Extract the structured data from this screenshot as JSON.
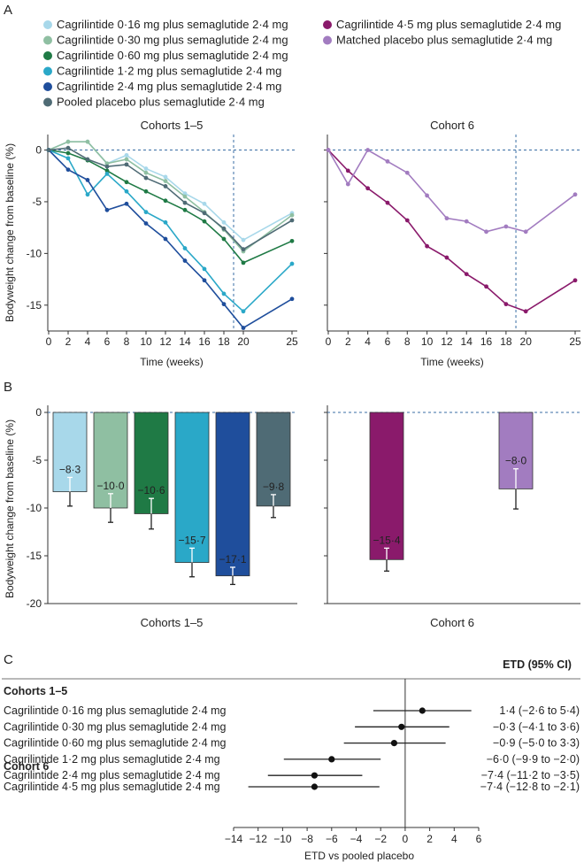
{
  "panel_letters": {
    "A": "A",
    "B": "B",
    "C": "C"
  },
  "colors": {
    "c016": "#a8d8ea",
    "c030": "#8fbfa2",
    "c060": "#1f7a45",
    "c12": "#2aa8c8",
    "c24": "#1f4e9c",
    "pooled": "#4f6b75",
    "c45": "#8a1a6b",
    "matched": "#a27cc0",
    "dash": "#3a6ea5"
  },
  "legend": [
    {
      "label": "Cagrilintide 0·16 mg plus semaglutide 2·4 mg",
      "color": "#a8d8ea"
    },
    {
      "label": "Cagrilintide 0·30 mg plus semaglutide 2·4 mg",
      "color": "#8fbfa2"
    },
    {
      "label": "Cagrilintide 0·60 mg plus semaglutide 2·4 mg",
      "color": "#1f7a45"
    },
    {
      "label": "Cagrilintide 1·2 mg plus semaglutide 2·4 mg",
      "color": "#2aa8c8"
    },
    {
      "label": "Cagrilintide 2·4 mg plus semaglutide 2·4 mg",
      "color": "#1f4e9c"
    },
    {
      "label": "Pooled placebo plus semaglutide 2·4 mg",
      "color": "#4f6b75"
    },
    {
      "label": "Cagrilintide 4·5 mg plus semaglutide 2·4 mg",
      "color": "#8a1a6b"
    },
    {
      "label": "Matched placebo plus semaglutide 2·4 mg",
      "color": "#a27cc0"
    }
  ],
  "chart_data": [
    {
      "type": "line",
      "panel": "A",
      "title": "Cohorts 1–5",
      "xlabel": "Time (weeks)",
      "ylabel": "Bodyweight change from baseline (%)",
      "xlim": [
        0,
        25
      ],
      "ylim": [
        -17.5,
        1.5
      ],
      "xticks": [
        0,
        2,
        4,
        6,
        8,
        10,
        12,
        14,
        16,
        18,
        20,
        25
      ],
      "yticks": [
        0,
        -5,
        -10,
        -15
      ],
      "ytick_labels": [
        "0",
        "-5",
        "-10",
        "-15"
      ],
      "reference_week": 19,
      "x": [
        0,
        2,
        4,
        6,
        8,
        10,
        12,
        14,
        16,
        18,
        20,
        25
      ],
      "series": [
        {
          "name": "Cagrilintide 0·16 mg plus semaglutide 2·4 mg",
          "color": "#a8d8ea",
          "values": [
            0,
            0.8,
            0.8,
            -1.3,
            -0.5,
            -1.8,
            -2.6,
            -4.2,
            -5.2,
            -7.0,
            -8.7,
            -6.1
          ]
        },
        {
          "name": "Cagrilintide 0·30 mg plus semaglutide 2·4 mg",
          "color": "#8fbfa2",
          "values": [
            0,
            0.8,
            0.8,
            -1.3,
            -0.9,
            -2.2,
            -3.0,
            -4.5,
            -6.0,
            -7.7,
            -9.8,
            -6.3
          ]
        },
        {
          "name": "Cagrilintide 0·60 mg plus semaglutide 2·4 mg",
          "color": "#1f7a45",
          "values": [
            0,
            -0.3,
            -1.0,
            -2.0,
            -3.1,
            -4.0,
            -4.9,
            -5.8,
            -6.9,
            -8.6,
            -10.9,
            -8.8
          ]
        },
        {
          "name": "Cagrilintide 1·2 mg plus semaglutide 2·4 mg",
          "color": "#2aa8c8",
          "values": [
            0,
            -0.8,
            -4.3,
            -2.3,
            -4.0,
            -6.0,
            -7.0,
            -9.5,
            -11.5,
            -13.9,
            -15.6,
            -11.0
          ]
        },
        {
          "name": "Cagrilintide 2·4 mg plus semaglutide 2·4 mg",
          "color": "#1f4e9c",
          "values": [
            0,
            -1.9,
            -2.9,
            -5.8,
            -5.2,
            -7.1,
            -8.6,
            -10.7,
            -12.6,
            -14.9,
            -17.2,
            -14.4
          ]
        },
        {
          "name": "Pooled placebo plus semaglutide 2·4 mg",
          "color": "#4f6b75",
          "values": [
            0,
            0.2,
            -0.9,
            -1.6,
            -1.4,
            -2.7,
            -3.5,
            -5.1,
            -6.1,
            -7.6,
            -9.6,
            -6.8
          ]
        }
      ]
    },
    {
      "type": "line",
      "panel": "A",
      "title": "Cohort 6",
      "xlabel": "Time (weeks)",
      "xlim": [
        0,
        25
      ],
      "ylim": [
        -17.5,
        1.5
      ],
      "xticks": [
        0,
        2,
        4,
        6,
        8,
        10,
        12,
        14,
        16,
        18,
        20,
        25
      ],
      "reference_week": 19,
      "x": [
        0,
        2,
        4,
        6,
        8,
        10,
        12,
        14,
        16,
        18,
        20,
        25
      ],
      "series": [
        {
          "name": "Cagrilintide 4·5 mg plus semaglutide 2·4 mg",
          "color": "#8a1a6b",
          "values": [
            0,
            -2.0,
            -3.7,
            -5.1,
            -6.8,
            -9.3,
            -10.4,
            -12.0,
            -13.2,
            -14.9,
            -15.6,
            -12.6
          ]
        },
        {
          "name": "Matched placebo plus semaglutide 2·4 mg",
          "color": "#a27cc0",
          "values": [
            0,
            -3.3,
            0.0,
            -1.1,
            -2.2,
            -4.4,
            -6.6,
            -6.9,
            -7.9,
            -7.4,
            -7.9,
            -4.3
          ]
        }
      ]
    },
    {
      "type": "bar",
      "panel": "B",
      "title": "Cohorts 1–5",
      "ylabel": "Bodyweight change from baseline (%)",
      "ylim": [
        -20,
        0
      ],
      "yticks": [
        0,
        -5,
        -10,
        -15,
        -20
      ],
      "ytick_labels": [
        "0",
        "-5",
        "-10",
        "-15",
        "-20"
      ],
      "bars": [
        {
          "series": "Cagrilintide 0·16 mg plus semaglutide 2·4 mg",
          "value": -8.3,
          "label": "−8·3",
          "error_low": -9.8,
          "error_high": -6.8,
          "color": "#a8d8ea"
        },
        {
          "series": "Cagrilintide 0·30 mg plus semaglutide 2·4 mg",
          "value": -10.0,
          "label": "−10·0",
          "error_low": -11.5,
          "error_high": -8.5,
          "color": "#8fbfa2"
        },
        {
          "series": "Cagrilintide 0·60 mg plus semaglutide 2·4 mg",
          "value": -10.6,
          "label": "−10·6",
          "error_low": -12.2,
          "error_high": -9.0,
          "color": "#1f7a45"
        },
        {
          "series": "Cagrilintide 1·2 mg plus semaglutide 2·4 mg",
          "value": -15.7,
          "label": "−15·7",
          "error_low": -17.2,
          "error_high": -14.2,
          "color": "#2aa8c8"
        },
        {
          "series": "Cagrilintide 2·4 mg plus semaglutide 2·4 mg",
          "value": -17.1,
          "label": "−17·1",
          "error_low": -18.0,
          "error_high": -16.2,
          "color": "#1f4e9c"
        },
        {
          "series": "Pooled placebo plus semaglutide 2·4 mg",
          "value": -9.8,
          "label": "−9·8",
          "error_low": -11.0,
          "error_high": -8.6,
          "color": "#4f6b75"
        }
      ]
    },
    {
      "type": "bar",
      "panel": "B",
      "title": "Cohort 6",
      "ylim": [
        -20,
        0
      ],
      "bars": [
        {
          "series": "Cagrilintide 4·5 mg plus semaglutide 2·4 mg",
          "value": -15.4,
          "label": "−15·4",
          "error_low": -16.6,
          "error_high": -14.2,
          "color": "#8a1a6b"
        },
        {
          "series": "Matched placebo plus semaglutide 2·4 mg",
          "value": -8.0,
          "label": "−8·0",
          "error_low": -10.1,
          "error_high": -5.9,
          "color": "#a27cc0"
        }
      ]
    },
    {
      "type": "scatter",
      "panel": "C",
      "subtype": "forest",
      "header": "ETD (95% CI)",
      "xlabel": "ETD vs pooled placebo",
      "xlim": [
        -14,
        6
      ],
      "xticks": [
        -14,
        -12,
        -10,
        -8,
        -6,
        -4,
        -2,
        0,
        2,
        4,
        6
      ],
      "xtick_labels": [
        "−14",
        "−12",
        "−10",
        "−8",
        "−6",
        "−4",
        "−2",
        "0",
        "2",
        "4",
        "6"
      ],
      "groups": [
        {
          "title": "Cohorts 1–5",
          "rows": [
            {
              "label": "Cagrilintide 0·16 mg plus semaglutide 2·4 mg",
              "etd": 1.4,
              "low": -2.6,
              "high": 5.4,
              "text": "1·4 (−2·6 to 5·4)"
            },
            {
              "label": "Cagrilintide 0·30 mg plus semaglutide 2·4 mg",
              "etd": -0.3,
              "low": -4.1,
              "high": 3.6,
              "text": "−0·3 (−4·1 to 3·6)"
            },
            {
              "label": "Cagrilintide 0·60 mg plus semaglutide 2·4 mg",
              "etd": -0.9,
              "low": -5.0,
              "high": 3.3,
              "text": "−0·9 (−5·0 to 3·3)"
            },
            {
              "label": "Cagrilintide 1·2 mg plus semaglutide 2·4 mg",
              "etd": -6.0,
              "low": -9.9,
              "high": -2.0,
              "text": "−6·0 (−9·9 to −2·0)"
            },
            {
              "label": "Cagrilintide 2·4 mg plus semaglutide 2·4 mg",
              "etd": -7.4,
              "low": -11.2,
              "high": -3.5,
              "text": "−7·4 (−11·2 to −3·5)"
            }
          ]
        },
        {
          "title": "Cohort 6",
          "rows": [
            {
              "label": "Cagrilintide 4·5 mg plus semaglutide 2·4 mg",
              "etd": -7.4,
              "low": -12.8,
              "high": -2.1,
              "text": "−7·4 (−12·8 to −2·1)"
            }
          ]
        }
      ]
    }
  ]
}
